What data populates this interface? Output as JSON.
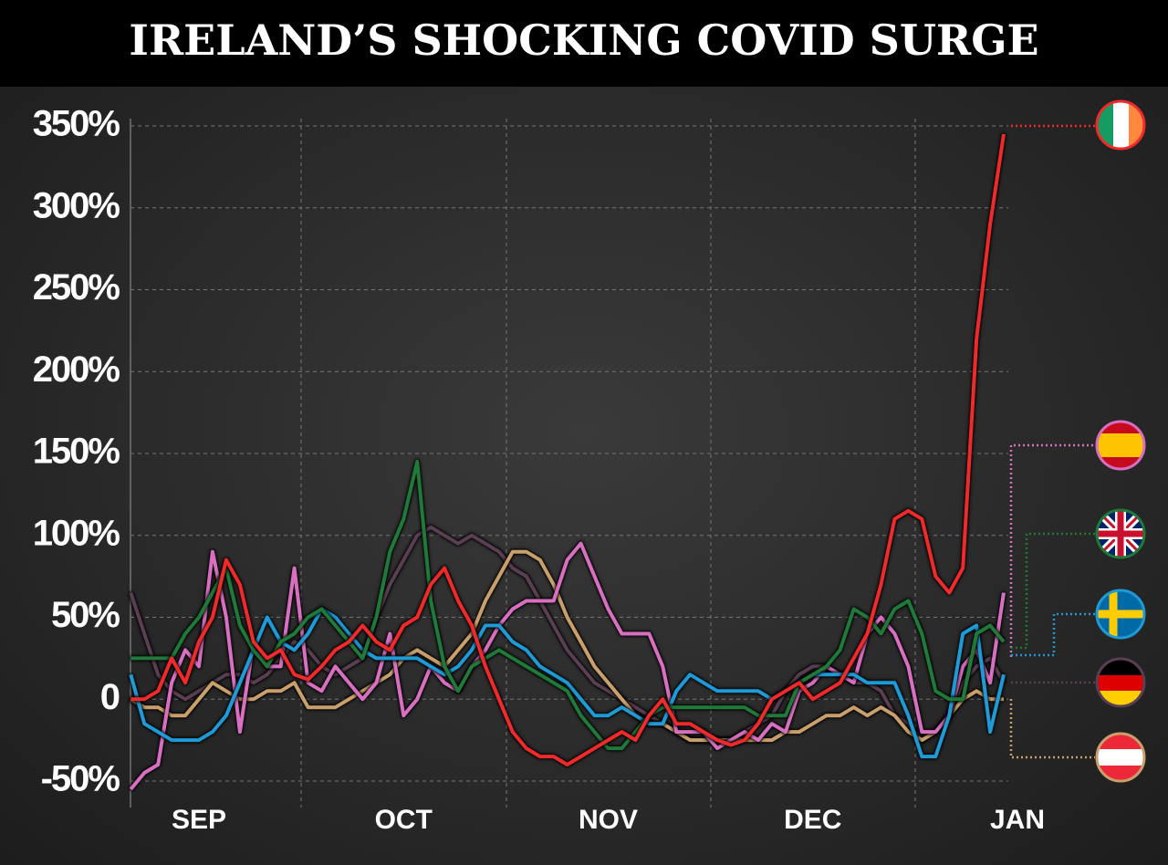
{
  "chart_data": {
    "type": "line",
    "title": "IRELAND’S SHOCKING COVID SURGE",
    "categories": [
      null,
      null,
      null,
      null,
      null,
      "SEP",
      null,
      null,
      null,
      null,
      null,
      null,
      null,
      null,
      null,
      null,
      null,
      null,
      null,
      null,
      "OCT",
      null,
      null,
      null,
      null,
      null,
      null,
      null,
      null,
      null,
      null,
      null,
      null,
      null,
      null,
      "NOV",
      null,
      null,
      null,
      null,
      null,
      null,
      null,
      null,
      null,
      null,
      null,
      null,
      null,
      null,
      "DEC",
      null,
      null,
      null,
      null,
      null,
      null,
      null,
      null,
      null,
      null,
      null,
      null,
      null,
      null,
      "JAN"
    ],
    "ylim": [
      -50,
      350
    ],
    "yticks": [
      {
        "value": -50,
        "label": "-50%"
      },
      0,
      {
        "value": 50,
        "label": "50%"
      },
      {
        "value": 100,
        "label": "100%"
      },
      {
        "value": 150,
        "label": "150%"
      },
      {
        "value": 200,
        "label": "200%"
      },
      {
        "value": 250,
        "label": "250%"
      },
      {
        "value": 300,
        "label": "300%"
      },
      {
        "value": 350,
        "label": "350%"
      }
    ],
    "grid": true,
    "series": [
      {
        "color": "#5a3f52",
        "values": [
          65,
          40,
          15,
          5,
          0,
          5,
          10,
          15,
          15,
          10,
          15,
          25,
          35,
          30,
          20,
          15,
          20,
          25,
          50,
          70,
          85,
          100,
          105,
          100,
          95,
          100,
          95,
          90,
          80,
          75,
          60,
          45,
          30,
          20,
          10,
          5,
          0,
          -5,
          -10,
          -15,
          -20,
          -25,
          -25,
          -25,
          -25,
          -20,
          -15,
          -10,
          5,
          15,
          20,
          20,
          15,
          10,
          10,
          5,
          -10,
          -15,
          -25,
          -20,
          -10,
          10,
          20,
          25,
          10,
          null
        ]
      },
      {
        "color": "#c9a06c",
        "values": [
          0,
          -5,
          -5,
          -10,
          -10,
          0,
          10,
          5,
          0,
          0,
          5,
          5,
          10,
          -5,
          -5,
          -5,
          0,
          5,
          10,
          15,
          25,
          30,
          25,
          20,
          30,
          40,
          60,
          75,
          90,
          90,
          85,
          70,
          50,
          35,
          20,
          10,
          0,
          -10,
          -15,
          -15,
          -20,
          -25,
          -25,
          -25,
          -25,
          -25,
          -25,
          -25,
          -20,
          -20,
          -15,
          -10,
          -10,
          -5,
          -10,
          -5,
          -10,
          -20,
          -25,
          -20,
          -10,
          0,
          5,
          0,
          0,
          null
        ]
      },
      {
        "color": "#d86fc0",
        "values": [
          -55,
          -45,
          -40,
          10,
          30,
          20,
          90,
          50,
          -20,
          35,
          20,
          20,
          80,
          10,
          5,
          20,
          10,
          0,
          10,
          40,
          -10,
          0,
          20,
          10,
          5,
          20,
          30,
          45,
          55,
          60,
          60,
          60,
          85,
          95,
          75,
          55,
          40,
          40,
          40,
          20,
          -20,
          -20,
          -20,
          -30,
          -25,
          -20,
          -25,
          -15,
          -20,
          5,
          10,
          20,
          15,
          10,
          40,
          50,
          40,
          20,
          -20,
          -20,
          -10,
          20,
          30,
          10,
          65,
          null
        ]
      },
      {
        "color": "#1e9ad6",
        "values": [
          15,
          -15,
          -20,
          -25,
          -25,
          -25,
          -20,
          -10,
          10,
          30,
          50,
          35,
          30,
          40,
          55,
          50,
          40,
          30,
          25,
          25,
          25,
          25,
          20,
          15,
          20,
          30,
          45,
          45,
          35,
          30,
          20,
          15,
          10,
          0,
          -10,
          -10,
          -5,
          -10,
          -15,
          -15,
          5,
          15,
          10,
          5,
          5,
          5,
          5,
          0,
          5,
          10,
          15,
          15,
          15,
          15,
          10,
          10,
          10,
          -10,
          -35,
          -35,
          -10,
          40,
          45,
          -20,
          15,
          null
        ]
      },
      {
        "color": "#1f7a3a",
        "values": [
          25,
          25,
          25,
          25,
          40,
          50,
          65,
          80,
          45,
          30,
          20,
          35,
          40,
          50,
          55,
          45,
          35,
          25,
          50,
          90,
          110,
          145,
          60,
          20,
          5,
          20,
          25,
          30,
          25,
          20,
          15,
          10,
          5,
          -10,
          -20,
          -30,
          -30,
          -20,
          -10,
          -5,
          -5,
          -5,
          -5,
          -5,
          -5,
          -5,
          -10,
          -10,
          -10,
          10,
          15,
          20,
          30,
          55,
          50,
          40,
          55,
          60,
          40,
          5,
          0,
          0,
          40,
          45,
          35,
          null
        ]
      },
      {
        "color": "#f02a2a",
        "values": [
          0,
          0,
          5,
          25,
          10,
          35,
          50,
          85,
          70,
          35,
          25,
          30,
          15,
          12,
          20,
          30,
          35,
          45,
          35,
          30,
          45,
          50,
          70,
          80,
          60,
          45,
          20,
          0,
          -20,
          -30,
          -35,
          -35,
          -40,
          -35,
          -30,
          -25,
          -20,
          -25,
          -10,
          0,
          -15,
          -15,
          -20,
          -25,
          -28,
          -25,
          -15,
          0,
          5,
          10,
          0,
          5,
          10,
          25,
          40,
          70,
          110,
          115,
          110,
          75,
          65,
          80,
          220,
          290,
          345,
          null
        ]
      }
    ]
  }
}
